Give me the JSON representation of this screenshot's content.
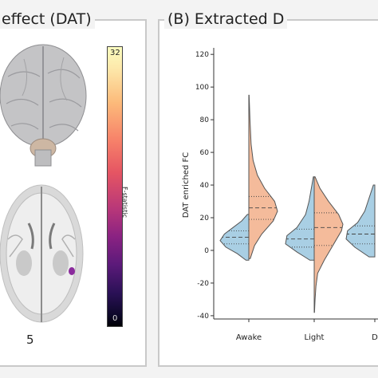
{
  "panel_a": {
    "title": "effect (DAT)",
    "colorbar": {
      "max_label": "32",
      "min_label": "0",
      "title": "F-statistic"
    },
    "slice_label": "5"
  },
  "panel_b": {
    "title": "(B) Extracted D"
  },
  "colors": {
    "left_half": "#a9cfe4",
    "right_half": "#f4bb9b",
    "outline": "#555555",
    "panel_border": "#c9c9c9",
    "blob": "#8b2b9d"
  },
  "chart_data": {
    "type": "violin",
    "ylabel": "DAT enriched FC",
    "ylim": [
      -42,
      124
    ],
    "yticks": [
      -40,
      -20,
      0,
      20,
      40,
      60,
      80,
      100,
      120
    ],
    "categories": [
      "Awake",
      "Light",
      "D"
    ],
    "split": true,
    "series": [
      {
        "side": "left",
        "groups": [
          {
            "category": "Awake",
            "min": -6,
            "max": 22,
            "q1": 4,
            "median": 8,
            "q3": 12,
            "profile": [
              [
                -6,
                0.1
              ],
              [
                -2,
                0.4
              ],
              [
                2,
                0.8
              ],
              [
                6,
                1.0
              ],
              [
                10,
                0.85
              ],
              [
                14,
                0.55
              ],
              [
                18,
                0.25
              ],
              [
                22,
                0.05
              ]
            ]
          },
          {
            "category": "Light",
            "min": -6,
            "max": 45,
            "q1": 2,
            "median": 7,
            "q3": 13,
            "profile": [
              [
                -6,
                0.15
              ],
              [
                -1,
                0.6
              ],
              [
                4,
                1.0
              ],
              [
                9,
                0.95
              ],
              [
                14,
                0.6
              ],
              [
                22,
                0.3
              ],
              [
                30,
                0.18
              ],
              [
                38,
                0.1
              ],
              [
                45,
                0.03
              ]
            ]
          },
          {
            "category": "D",
            "min": -4,
            "max": 40,
            "q1": 4,
            "median": 10,
            "q3": 15,
            "profile": [
              [
                -4,
                0.2
              ],
              [
                2,
                0.7
              ],
              [
                7,
                1.0
              ],
              [
                12,
                0.95
              ],
              [
                17,
                0.6
              ],
              [
                24,
                0.35
              ],
              [
                32,
                0.2
              ],
              [
                40,
                0.05
              ]
            ]
          }
        ]
      },
      {
        "side": "right",
        "groups": [
          {
            "category": "Awake",
            "min": -5,
            "max": 95,
            "q1": 19,
            "median": 26,
            "q3": 33,
            "profile": [
              [
                -5,
                0.05
              ],
              [
                3,
                0.2
              ],
              [
                10,
                0.45
              ],
              [
                18,
                0.85
              ],
              [
                24,
                1.0
              ],
              [
                30,
                0.9
              ],
              [
                38,
                0.55
              ],
              [
                46,
                0.3
              ],
              [
                55,
                0.15
              ],
              [
                65,
                0.08
              ],
              [
                80,
                0.04
              ],
              [
                95,
                0.01
              ]
            ]
          },
          {
            "category": "Light",
            "min": -38,
            "max": 45,
            "q1": 3,
            "median": 14,
            "q3": 23,
            "profile": [
              [
                -38,
                0.01
              ],
              [
                -30,
                0.03
              ],
              [
                -22,
                0.06
              ],
              [
                -14,
                0.12
              ],
              [
                -6,
                0.35
              ],
              [
                0,
                0.55
              ],
              [
                6,
                0.75
              ],
              [
                12,
                0.95
              ],
              [
                16,
                1.0
              ],
              [
                22,
                0.85
              ],
              [
                30,
                0.5
              ],
              [
                38,
                0.2
              ],
              [
                45,
                0.03
              ]
            ]
          }
        ]
      }
    ]
  }
}
